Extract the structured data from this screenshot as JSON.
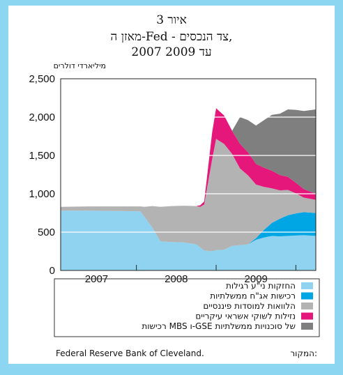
{
  "chart_data": {
    "type": "area",
    "stacked": true,
    "title": "איור 3",
    "subtitle_lines": [
      "מאזן ה-Fed - צד הנכסים,",
      "2007 עד 2009"
    ],
    "ylabel": "מיליארדי דולרים",
    "ylim": [
      0,
      2500
    ],
    "yticks": [
      0,
      500,
      1000,
      1500,
      2000,
      2500
    ],
    "ytick_labels": [
      "0",
      "500",
      "1,000",
      "1,500",
      "2,000",
      "2,500"
    ],
    "xlim": [
      2006.55,
      2009.75
    ],
    "xtick_labels": [
      {
        "label": "2007",
        "at": 2007
      },
      {
        "label": "2008",
        "at": 2008
      },
      {
        "label": "2009",
        "at": 2009
      }
    ],
    "year_ticks": [
      2007.5,
      2008.5,
      2009.5
    ],
    "x": [
      2006.55,
      2006.9,
      2007.3,
      2007.55,
      2007.6,
      2007.7,
      2007.8,
      2007.95,
      2008.1,
      2008.25,
      2008.3,
      2008.35,
      2008.45,
      2008.5,
      2008.6,
      2008.7,
      2008.8,
      2008.9,
      2009.0,
      2009.1,
      2009.2,
      2009.3,
      2009.4,
      2009.5,
      2009.6,
      2009.75
    ],
    "series": [
      {
        "name": "החזקות ני\"ע רגילות",
        "color": "#8fd3f1",
        "values": [
          780,
          780,
          775,
          770,
          700,
          560,
          380,
          370,
          365,
          340,
          300,
          260,
          250,
          265,
          270,
          320,
          330,
          340,
          400,
          430,
          450,
          445,
          450,
          455,
          460,
          450
        ]
      },
      {
        "name": "רכישות אג\"ח ממשלתיות",
        "color": "#00a6e4",
        "values": [
          0,
          0,
          0,
          0,
          0,
          0,
          0,
          0,
          0,
          0,
          0,
          0,
          0,
          0,
          0,
          0,
          0,
          0,
          20,
          100,
          170,
          230,
          270,
          290,
          300,
          300
        ]
      },
      {
        "name": "הלוואות למוסדות פיננסיים",
        "color": "#b3b3b3",
        "values": [
          50,
          55,
          60,
          65,
          130,
          280,
          450,
          470,
          480,
          500,
          530,
          600,
          1200,
          1450,
          1380,
          1200,
          1000,
          900,
          700,
          560,
          450,
          370,
          330,
          260,
          190,
          170
        ]
      },
      {
        "name": "נזילות לשוקי אשראי עיקריים",
        "color": "#e6177b",
        "values": [
          0,
          0,
          0,
          0,
          0,
          0,
          0,
          0,
          0,
          0,
          20,
          40,
          350,
          400,
          370,
          300,
          320,
          300,
          270,
          250,
          230,
          200,
          170,
          140,
          110,
          80
        ]
      },
      {
        "name": "רכישות MBS ו-GSE של סוכנויות ממשלתיות",
        "color": "#7f7f7f",
        "values": [
          0,
          0,
          0,
          0,
          0,
          0,
          0,
          0,
          0,
          0,
          0,
          0,
          0,
          0,
          0,
          0,
          350,
          420,
          500,
          620,
          730,
          800,
          880,
          950,
          1020,
          1100
        ]
      }
    ],
    "legend_placement": "bottom"
  },
  "source_label": "המקור:",
  "source_text": "Federal Reserve Bank of Cleveland."
}
